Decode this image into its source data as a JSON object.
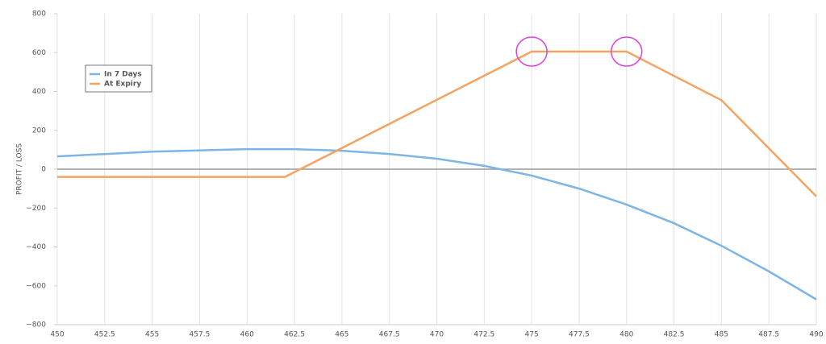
{
  "chart_data": {
    "type": "line",
    "y_label": "PROFIT / LOSS",
    "x": [
      450,
      452.5,
      455,
      457.5,
      460,
      462,
      462.5,
      465,
      467.5,
      470,
      472.5,
      475,
      477.5,
      480,
      482.5,
      485,
      487.5,
      490
    ],
    "series": [
      {
        "name": "In 7 Days",
        "color": "#7cb5e6",
        "values": [
          66,
          null,
          90,
          null,
          103,
          null,
          103,
          95,
          78,
          54,
          17,
          -33,
          -100,
          -182,
          -278,
          -394,
          -526,
          -670
        ]
      },
      {
        "name": "At Expiry",
        "color": "#f4a460",
        "values": [
          -40,
          null,
          null,
          null,
          null,
          -40,
          null,
          null,
          null,
          null,
          null,
          605,
          null,
          605,
          null,
          355,
          null,
          -140
        ]
      }
    ],
    "xlim": [
      450,
      490
    ],
    "xticks": [
      450,
      452.5,
      455,
      457.5,
      460,
      462.5,
      465,
      467.5,
      470,
      472.5,
      475,
      477.5,
      480,
      482.5,
      485,
      487.5,
      490
    ],
    "ylim": [
      -800,
      800
    ],
    "yticks": [
      {
        "value": -800,
        "label": "−800"
      },
      {
        "value": -600,
        "label": "−600"
      },
      {
        "value": -400,
        "label": "−400"
      },
      {
        "value": -200,
        "label": "−200"
      },
      0,
      200,
      400,
      600,
      800
    ],
    "grid": "x",
    "legend": "upper-left",
    "highlight_color": "#e040e0"
  }
}
